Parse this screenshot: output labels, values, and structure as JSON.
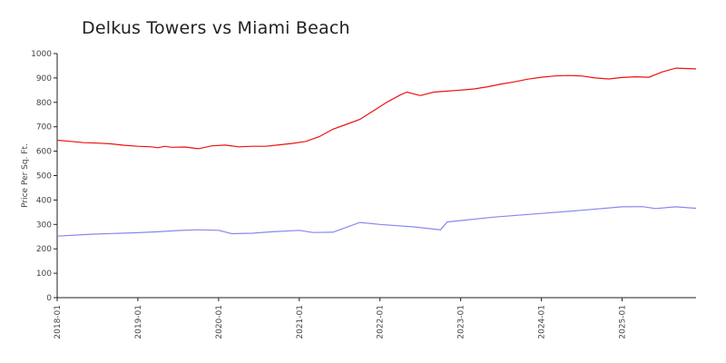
{
  "chart_data": {
    "type": "line",
    "title": "Delkus Towers vs Miami Beach",
    "xlabel": "",
    "ylabel": "Price Per Sq. Ft.",
    "ylim": [
      0,
      1000
    ],
    "xlim": [
      "2018-01",
      "2025-12"
    ],
    "yticks": [
      0,
      100,
      200,
      300,
      400,
      500,
      600,
      700,
      800,
      900,
      1000
    ],
    "xticks": [
      "2018-01",
      "2019-01",
      "2020-01",
      "2021-01",
      "2022-01",
      "2023-01",
      "2024-01",
      "2025-01"
    ],
    "grid": false,
    "series": [
      {
        "color": "#ee1111",
        "points": [
          [
            "2018-01",
            645
          ],
          [
            "2018-03",
            640
          ],
          [
            "2018-05",
            635
          ],
          [
            "2018-07",
            633
          ],
          [
            "2018-09",
            630
          ],
          [
            "2018-11",
            624
          ],
          [
            "2019-01",
            620
          ],
          [
            "2019-03",
            618
          ],
          [
            "2019-04",
            614
          ],
          [
            "2019-05",
            620
          ],
          [
            "2019-06",
            616
          ],
          [
            "2019-08",
            617
          ],
          [
            "2019-10",
            610
          ],
          [
            "2019-12",
            622
          ],
          [
            "2020-02",
            625
          ],
          [
            "2020-04",
            618
          ],
          [
            "2020-06",
            620
          ],
          [
            "2020-08",
            620
          ],
          [
            "2020-10",
            626
          ],
          [
            "2020-12",
            632
          ],
          [
            "2021-02",
            640
          ],
          [
            "2021-04",
            660
          ],
          [
            "2021-06",
            690
          ],
          [
            "2021-08",
            710
          ],
          [
            "2021-10",
            730
          ],
          [
            "2021-12",
            765
          ],
          [
            "2022-02",
            800
          ],
          [
            "2022-04",
            830
          ],
          [
            "2022-05",
            842
          ],
          [
            "2022-07",
            828
          ],
          [
            "2022-09",
            842
          ],
          [
            "2022-11",
            846
          ],
          [
            "2023-01",
            850
          ],
          [
            "2023-03",
            855
          ],
          [
            "2023-05",
            864
          ],
          [
            "2023-07",
            875
          ],
          [
            "2023-09",
            884
          ],
          [
            "2023-11",
            895
          ],
          [
            "2024-01",
            903
          ],
          [
            "2024-03",
            908
          ],
          [
            "2024-05",
            910
          ],
          [
            "2024-07",
            908
          ],
          [
            "2024-09",
            900
          ],
          [
            "2024-11",
            896
          ],
          [
            "2025-01",
            902
          ],
          [
            "2025-03",
            905
          ],
          [
            "2025-05",
            903
          ],
          [
            "2025-07",
            925
          ],
          [
            "2025-09",
            940
          ],
          [
            "2025-12",
            937
          ]
        ]
      },
      {
        "color": "#8888ee",
        "points": [
          [
            "2018-01",
            252
          ],
          [
            "2018-06",
            260
          ],
          [
            "2019-01",
            266
          ],
          [
            "2019-04",
            270
          ],
          [
            "2019-07",
            275
          ],
          [
            "2019-10",
            278
          ],
          [
            "2020-01",
            276
          ],
          [
            "2020-03",
            262
          ],
          [
            "2020-06",
            264
          ],
          [
            "2020-09",
            270
          ],
          [
            "2021-01",
            276
          ],
          [
            "2021-03",
            267
          ],
          [
            "2021-06",
            268
          ],
          [
            "2021-10",
            308
          ],
          [
            "2022-01",
            300
          ],
          [
            "2022-06",
            290
          ],
          [
            "2022-10",
            278
          ],
          [
            "2022-11",
            310
          ],
          [
            "2023-06",
            330
          ],
          [
            "2024-01",
            345
          ],
          [
            "2024-07",
            358
          ],
          [
            "2025-01",
            372
          ],
          [
            "2025-04",
            373
          ],
          [
            "2025-06",
            365
          ],
          [
            "2025-09",
            372
          ],
          [
            "2025-12",
            366
          ]
        ]
      }
    ]
  }
}
